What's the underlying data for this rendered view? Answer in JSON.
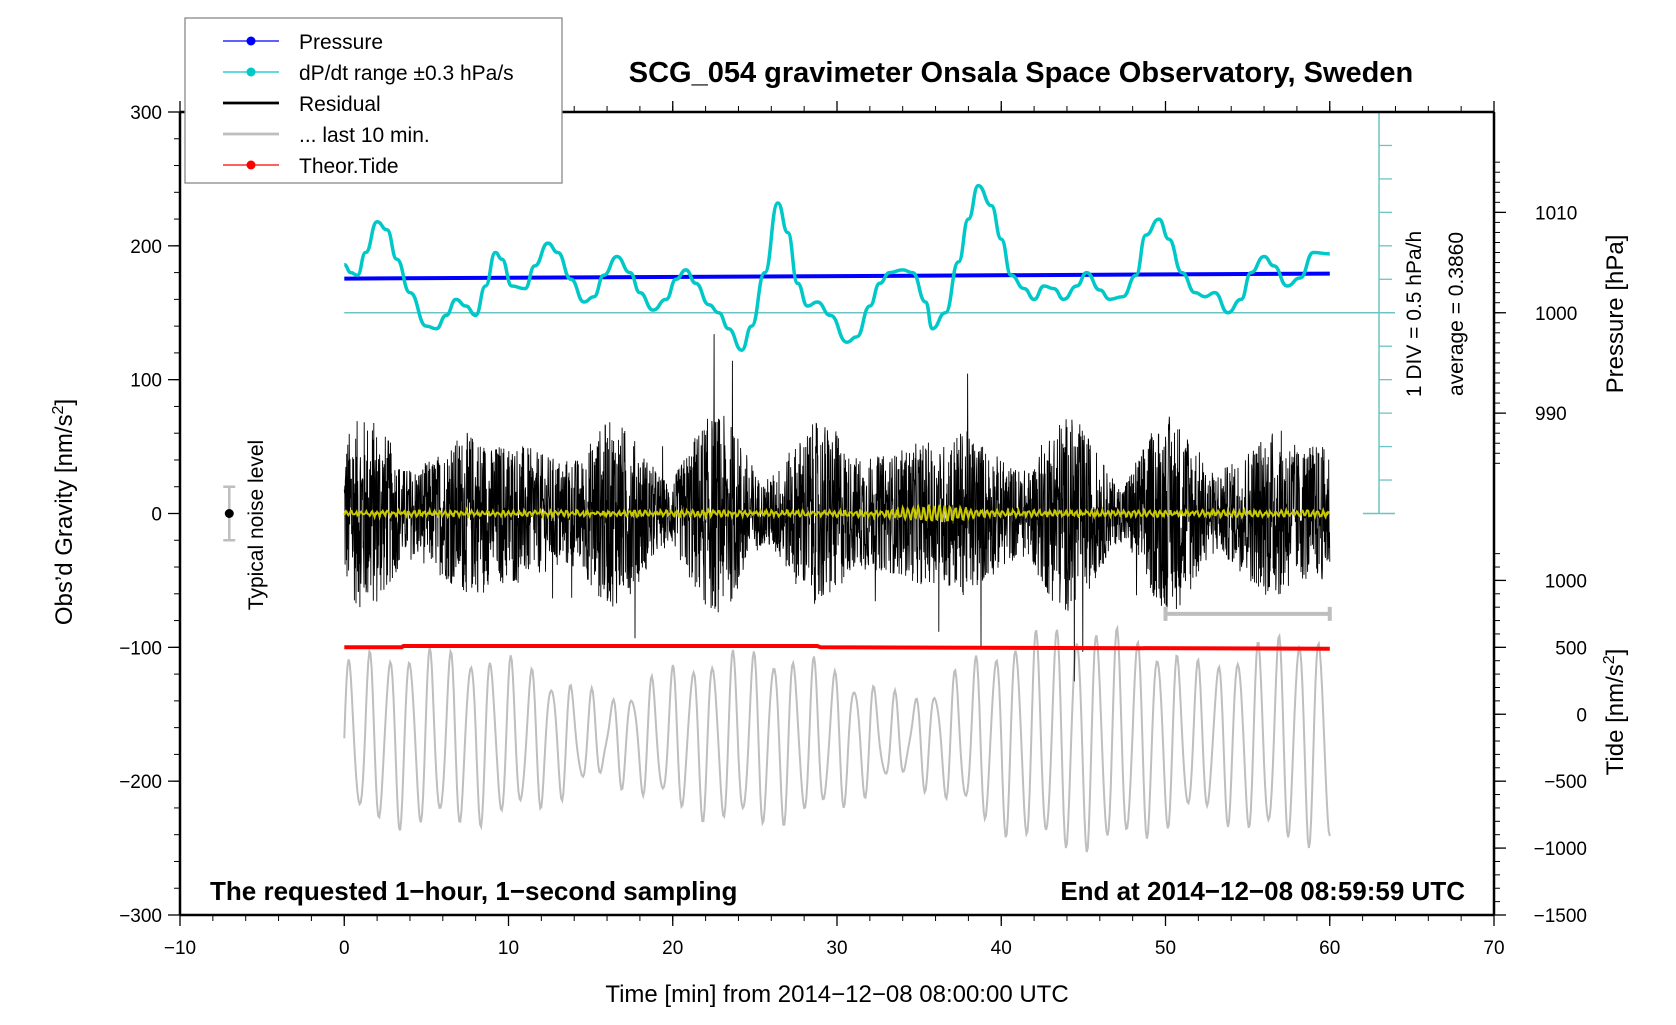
{
  "chart_data": {
    "type": "line",
    "title": "SCG_054 gravimeter Onsala Space Observatory, Sweden",
    "xlabel": "Time [min] from 2014−12−08 08:00:00 UTC",
    "ylabel_left": "Obs’d Gravity [nm/s",
    "ylabel_left_sup": "2",
    "ylabel_left_end": "]",
    "ylabel_right_pressure": "Pressure [hPa]",
    "ylabel_right_tide": "Tide [nm/s",
    "ylabel_right_tide_sup": "2",
    "ylabel_right_tide_end": "]",
    "xlim": [
      -10,
      70
    ],
    "ylim_left": [
      -300,
      300
    ],
    "x_ticks": [
      "−10",
      "0",
      "10",
      "20",
      "30",
      "40",
      "50",
      "60",
      "70"
    ],
    "x_tick_values": [
      -10,
      0,
      10,
      20,
      30,
      40,
      50,
      60,
      70
    ],
    "y_left_ticks": [
      "300",
      "200",
      "100",
      "0",
      "−100",
      "−200",
      "−300"
    ],
    "y_left_tick_values": [
      300,
      200,
      100,
      0,
      -100,
      -200,
      -300
    ],
    "pressure_ticks": [
      "1010",
      "1000",
      "990"
    ],
    "pressure_tick_values": [
      1010,
      1000,
      990
    ],
    "pressure_axis_map": {
      "value_1000_at_gravity": 150,
      "per_10hPa_gravity": 75
    },
    "tide_ticks": [
      "1000",
      "500",
      "0",
      "−500",
      "−1000",
      "−1500"
    ],
    "tide_tick_values": [
      1000,
      500,
      0,
      -500,
      -1000,
      -1500
    ],
    "tide_axis_map": {
      "value_0_at_gravity": -150,
      "per_500_gravity": 50
    },
    "legend": {
      "placement": "top-left",
      "entries": [
        {
          "label": "Pressure",
          "color": "#0000ff",
          "marker": true
        },
        {
          "label": "dP/dt range ±0.3 hPa/s",
          "color": "#00c8c8",
          "marker": true
        },
        {
          "label": "Residual",
          "color": "#000000",
          "marker": false
        },
        {
          "label": "... last 10 min.",
          "color": "#bebebe",
          "marker": false
        },
        {
          "label": "Theor.Tide",
          "color": "#ff0000",
          "marker": true
        }
      ]
    },
    "annotations": {
      "left_note": "The requested 1−hour, 1−second sampling",
      "right_note": "End at 2014−12−08 08:59:59 UTC",
      "noise_label": "Typical noise level",
      "noise_level": {
        "x": -7,
        "center": 0,
        "half_range": 20
      },
      "dpdt_div": "1 DIV = 0.5 hPa/h",
      "dpdt_average": "average = 0.3860",
      "last10_bracket": {
        "x_start": 50,
        "x_end": 60,
        "y": -75
      }
    },
    "series": [
      {
        "name": "Pressure",
        "color": "#0000ff",
        "unit": "hPa",
        "x": [
          0,
          60
        ],
        "values": [
          1003.4,
          1003.9
        ]
      },
      {
        "name": "dP/dt",
        "color": "#00c8c8",
        "baseline_gravity_units": 150,
        "x": [
          0,
          0.4,
          0.8,
          1.3,
          2.0,
          2.6,
          3.2,
          4.0,
          5.0,
          5.6,
          6.2,
          6.8,
          7.4,
          8.0,
          8.6,
          9.2,
          9.6,
          10.2,
          11.0,
          11.6,
          12.4,
          13.0,
          13.8,
          14.6,
          15.2,
          15.8,
          16.6,
          17.4,
          18.0,
          18.8,
          19.6,
          20.2,
          20.8,
          21.4,
          22.2,
          22.8,
          23.4,
          24.2,
          24.8,
          25.6,
          26.4,
          27.0,
          27.6,
          28.2,
          28.8,
          29.6,
          30.6,
          31.2,
          32.0,
          32.6,
          33.2,
          34.0,
          34.6,
          35.4,
          35.8,
          36.6,
          37.4,
          38.0,
          38.6,
          39.4,
          40.0,
          40.6,
          41.4,
          42.0,
          42.6,
          43.2,
          43.8,
          44.6,
          45.2,
          46.0,
          46.6,
          47.4,
          48.2,
          48.8,
          49.6,
          50.2,
          51.0,
          51.8,
          52.4,
          53.0,
          53.8,
          54.6,
          55.2,
          56.0,
          56.6,
          57.4,
          58.2,
          59.0,
          60
        ],
        "values": [
          186,
          180,
          178,
          195,
          218,
          212,
          190,
          165,
          140,
          138,
          148,
          160,
          155,
          148,
          170,
          195,
          190,
          170,
          168,
          185,
          202,
          195,
          175,
          158,
          162,
          178,
          192,
          180,
          165,
          152,
          160,
          175,
          182,
          172,
          156,
          150,
          138,
          122,
          140,
          180,
          232,
          210,
          172,
          155,
          158,
          148,
          128,
          132,
          155,
          172,
          180,
          182,
          180,
          158,
          138,
          150,
          188,
          220,
          245,
          230,
          205,
          178,
          168,
          160,
          170,
          168,
          160,
          170,
          180,
          167,
          160,
          162,
          178,
          208,
          220,
          205,
          180,
          165,
          162,
          165,
          150,
          160,
          180,
          192,
          185,
          170,
          176,
          195,
          194
        ]
      },
      {
        "name": "Residual",
        "color": "#000000",
        "x_range": [
          0,
          60
        ],
        "amplitude_typical": 60,
        "amplitude_max": 125,
        "sampling": "1 s"
      },
      {
        "name": "Residual smoothed",
        "color": "#c8c800",
        "x_range": [
          0,
          60
        ],
        "amplitude_typical": 3
      },
      {
        "name": "Theor.Tide",
        "color": "#ff0000",
        "x": [
          0,
          3.5,
          3.6,
          28.8,
          29.0,
          60
        ],
        "values": [
          -100,
          -100,
          -99,
          -99,
          -100,
          -101
        ]
      },
      {
        "name": "Tide (grey)",
        "color": "#bebebe",
        "x_range": [
          0,
          60
        ],
        "center_gravity": -168,
        "amplitude_typical": 40,
        "amplitude_max": 105
      }
    ]
  }
}
